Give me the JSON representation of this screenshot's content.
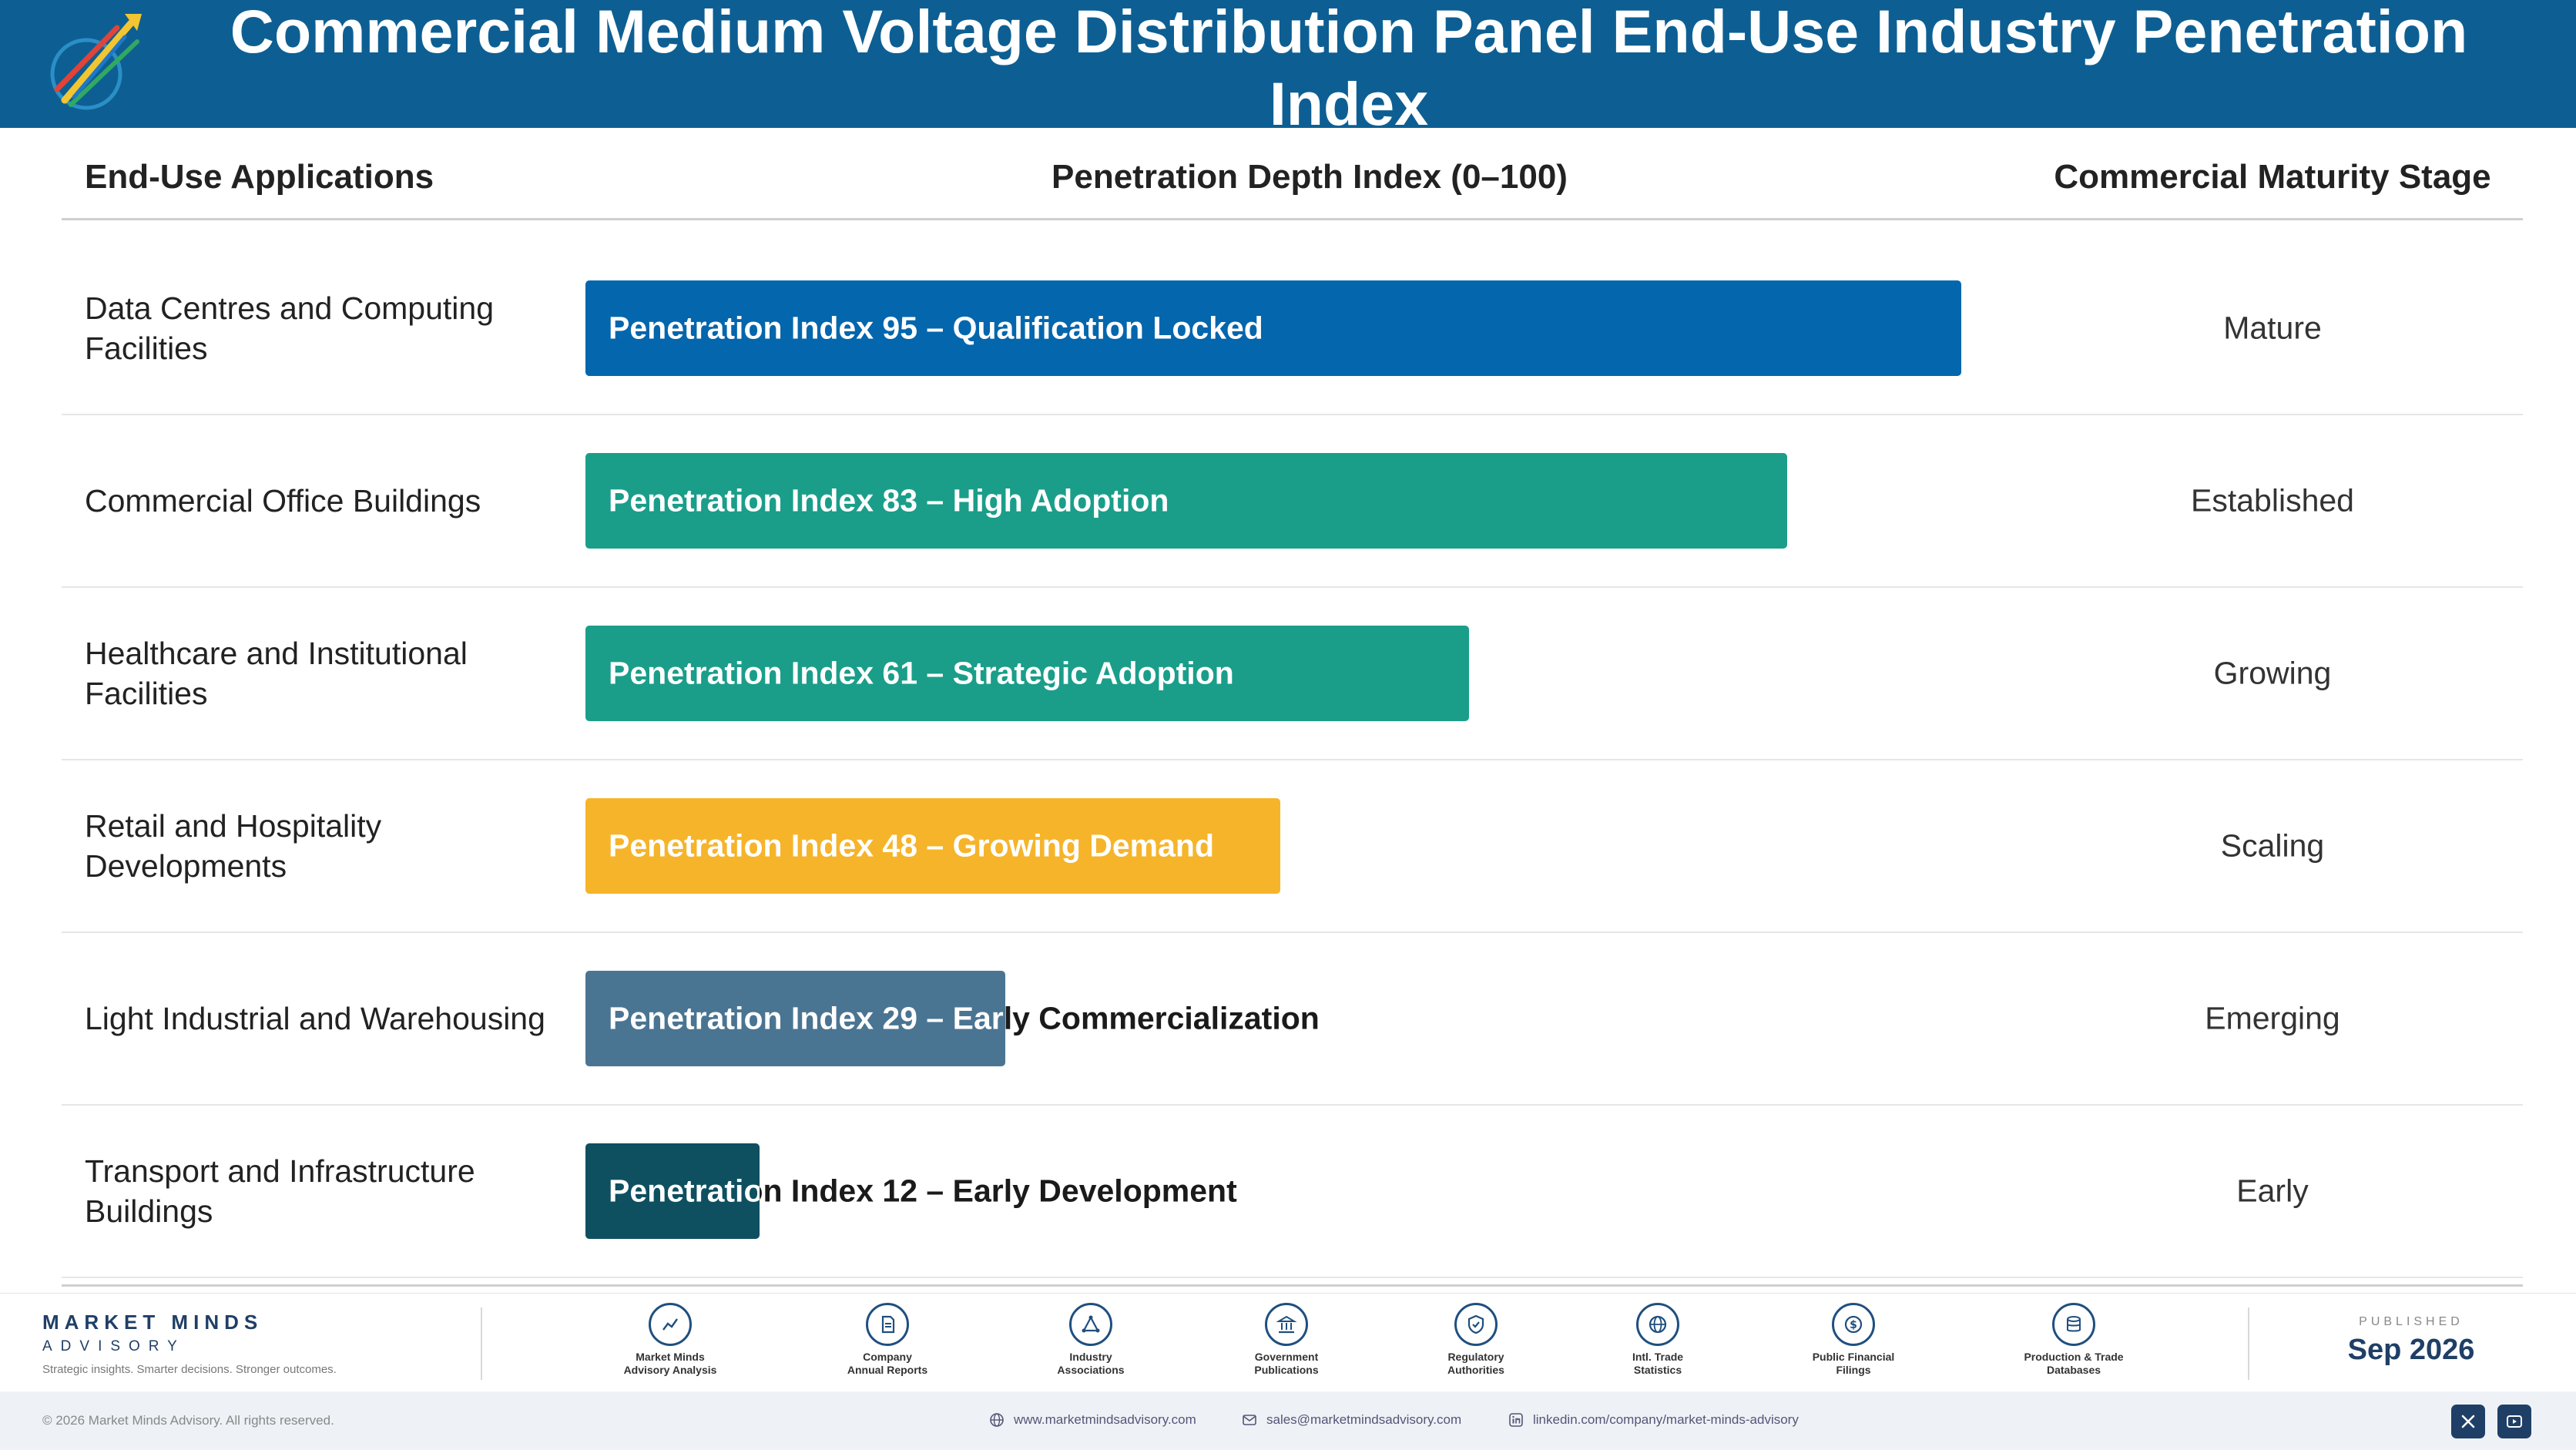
{
  "header": {
    "title": "Commercial Medium Voltage Distribution Panel End-Use Industry Penetration Index",
    "logo_icon": "rising-arrows-logo"
  },
  "columns": {
    "applications": "End-Use Applications",
    "depth": "Penetration Depth Index (0–100)",
    "stage": "Commercial Maturity Stage"
  },
  "chart_data": {
    "type": "bar",
    "orientation": "horizontal",
    "title": "Commercial Medium Voltage Distribution Panel End-Use Industry Penetration Index",
    "xlabel": "Penetration Depth Index (0–100)",
    "xlim": [
      0,
      100
    ],
    "grid": false,
    "categories": [
      "Data Centres and Computing Facilities",
      "Commercial Office Buildings",
      "Healthcare and Institutional Facilities",
      "Retail and Hospitality Developments",
      "Light Industrial and Warehousing",
      "Transport and Infrastructure Buildings"
    ],
    "values": [
      95,
      83,
      61,
      48,
      29,
      12
    ],
    "bar_labels": [
      "Penetration Index 95 – Qualification Locked",
      "Penetration Index 83 – High Adoption",
      "Penetration Index 61 – Strategic Adoption",
      "Penetration Index 48 – Growing Demand",
      "Penetration Index 29 – Early Commercialization",
      "Penetration Index 12 – Early Development"
    ],
    "stages": [
      "Mature",
      "Established",
      "Growing",
      "Scaling",
      "Emerging",
      "Early"
    ],
    "colors": [
      "#0466ad",
      "#1a9e8a",
      "#1a9e8a",
      "#f6b42a",
      "#4a7592",
      "#0e5060"
    ]
  },
  "footer": {
    "brand_name": "MARKET MINDS",
    "brand_sub": "ADVISORY",
    "tagline": "Strategic insights. Smarter decisions. Stronger outcomes.",
    "sources": [
      {
        "line1": "Market Minds",
        "line2": "Advisory Analysis",
        "icon": "trend-line-icon"
      },
      {
        "line1": "Company",
        "line2": "Annual Reports",
        "icon": "document-icon"
      },
      {
        "line1": "Industry",
        "line2": "Associations",
        "icon": "network-icon"
      },
      {
        "line1": "Government",
        "line2": "Publications",
        "icon": "government-building-icon"
      },
      {
        "line1": "Regulatory",
        "line2": "Authorities",
        "icon": "shield-check-icon"
      },
      {
        "line1": "Intl. Trade",
        "line2": "Statistics",
        "icon": "globe-icon"
      },
      {
        "line1": "Public Financial",
        "line2": "Filings",
        "icon": "dollar-coin-icon"
      },
      {
        "line1": "Production & Trade",
        "line2": "Databases",
        "icon": "database-icon"
      }
    ],
    "published_label": "PUBLISHED",
    "published_date": "Sep 2026",
    "copyright": "© 2026 Market Minds Advisory. All rights reserved.",
    "website": "www.marketmindsadvisory.com",
    "email": "sales@marketmindsadvisory.com",
    "linkedin": "linkedin.com/company/market-minds-advisory"
  }
}
